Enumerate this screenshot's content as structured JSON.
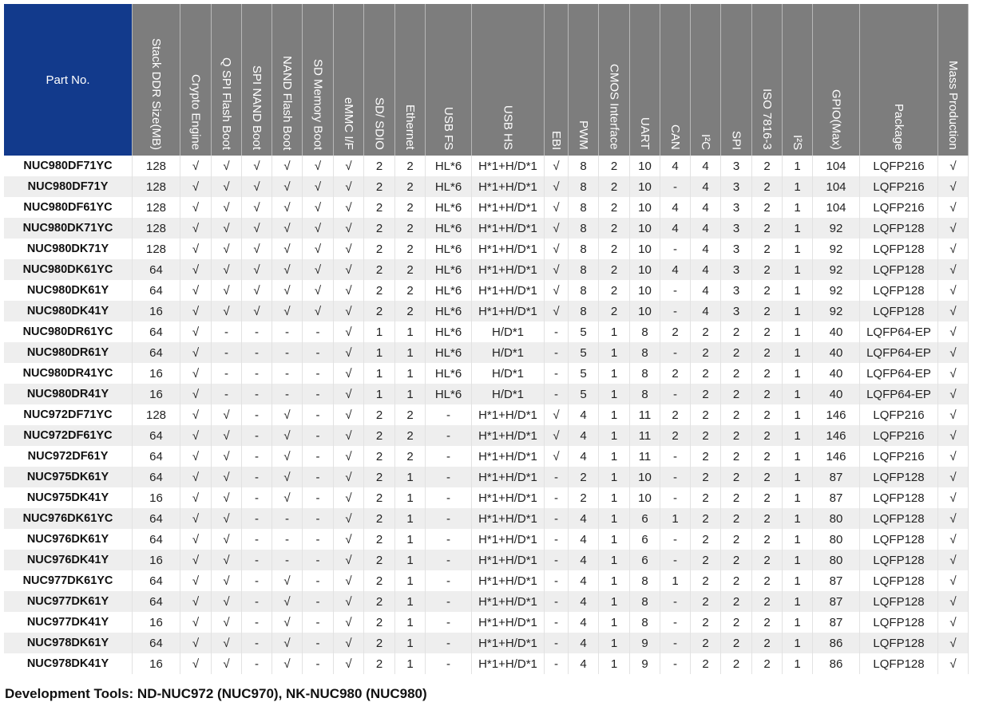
{
  "table": {
    "headers": [
      "Part No.",
      "Stack DDR Size(MB)",
      "Crypto Engine",
      "Q SPI Flash Boot",
      "SPI NAND Boot",
      "NAND Flash Boot",
      "SD Memory Boot",
      "eMMC I/F",
      "SD/ SDIO",
      "Ethernet",
      "USB FS",
      "USB HS",
      "EBI",
      "PWM",
      "CMOS Interface",
      "UART",
      "CAN",
      "I²C",
      "SPI",
      "ISO 7816-3",
      "I²S",
      "GPIO(Max)",
      "Package",
      "Mass Production"
    ],
    "rows": [
      [
        "NUC980DF71YC",
        "128",
        "√",
        "√",
        "√",
        "√",
        "√",
        "√",
        "2",
        "2",
        "HL*6",
        "H*1+H/D*1",
        "√",
        "8",
        "2",
        "10",
        "4",
        "4",
        "3",
        "2",
        "1",
        "104",
        "LQFP216",
        "√"
      ],
      [
        "NUC980DF71Y",
        "128",
        "√",
        "√",
        "√",
        "√",
        "√",
        "√",
        "2",
        "2",
        "HL*6",
        "H*1+H/D*1",
        "√",
        "8",
        "2",
        "10",
        "-",
        "4",
        "3",
        "2",
        "1",
        "104",
        "LQFP216",
        "√"
      ],
      [
        "NUC980DF61YC",
        "128",
        "√",
        "√",
        "√",
        "√",
        "√",
        "√",
        "2",
        "2",
        "HL*6",
        "H*1+H/D*1",
        "√",
        "8",
        "2",
        "10",
        "4",
        "4",
        "3",
        "2",
        "1",
        "104",
        "LQFP216",
        "√"
      ],
      [
        "NUC980DK71YC",
        "128",
        "√",
        "√",
        "√",
        "√",
        "√",
        "√",
        "2",
        "2",
        "HL*6",
        "H*1+H/D*1",
        "√",
        "8",
        "2",
        "10",
        "4",
        "4",
        "3",
        "2",
        "1",
        "92",
        "LQFP128",
        "√"
      ],
      [
        "NUC980DK71Y",
        "128",
        "√",
        "√",
        "√",
        "√",
        "√",
        "√",
        "2",
        "2",
        "HL*6",
        "H*1+H/D*1",
        "√",
        "8",
        "2",
        "10",
        "-",
        "4",
        "3",
        "2",
        "1",
        "92",
        "LQFP128",
        "√"
      ],
      [
        "NUC980DK61YC",
        "64",
        "√",
        "√",
        "√",
        "√",
        "√",
        "√",
        "2",
        "2",
        "HL*6",
        "H*1+H/D*1",
        "√",
        "8",
        "2",
        "10",
        "4",
        "4",
        "3",
        "2",
        "1",
        "92",
        "LQFP128",
        "√"
      ],
      [
        "NUC980DK61Y",
        "64",
        "√",
        "√",
        "√",
        "√",
        "√",
        "√",
        "2",
        "2",
        "HL*6",
        "H*1+H/D*1",
        "√",
        "8",
        "2",
        "10",
        "-",
        "4",
        "3",
        "2",
        "1",
        "92",
        "LQFP128",
        "√"
      ],
      [
        "NUC980DK41Y",
        "16",
        "√",
        "√",
        "√",
        "√",
        "√",
        "√",
        "2",
        "2",
        "HL*6",
        "H*1+H/D*1",
        "√",
        "8",
        "2",
        "10",
        "-",
        "4",
        "3",
        "2",
        "1",
        "92",
        "LQFP128",
        "√"
      ],
      [
        "NUC980DR61YC",
        "64",
        "√",
        "-",
        "-",
        "-",
        "-",
        "√",
        "1",
        "1",
        "HL*6",
        "H/D*1",
        "-",
        "5",
        "1",
        "8",
        "2",
        "2",
        "2",
        "2",
        "1",
        "40",
        "LQFP64-EP",
        "√"
      ],
      [
        "NUC980DR61Y",
        "64",
        "√",
        "-",
        "-",
        "-",
        "-",
        "√",
        "1",
        "1",
        "HL*6",
        "H/D*1",
        "-",
        "5",
        "1",
        "8",
        "-",
        "2",
        "2",
        "2",
        "1",
        "40",
        "LQFP64-EP",
        "√"
      ],
      [
        "NUC980DR41YC",
        "16",
        "√",
        "-",
        "-",
        "-",
        "-",
        "√",
        "1",
        "1",
        "HL*6",
        "H/D*1",
        "-",
        "5",
        "1",
        "8",
        "2",
        "2",
        "2",
        "2",
        "1",
        "40",
        "LQFP64-EP",
        "√"
      ],
      [
        "NUC980DR41Y",
        "16",
        "√",
        "-",
        "-",
        "-",
        "-",
        "√",
        "1",
        "1",
        "HL*6",
        "H/D*1",
        "-",
        "5",
        "1",
        "8",
        "-",
        "2",
        "2",
        "2",
        "1",
        "40",
        "LQFP64-EP",
        "√"
      ],
      [
        "NUC972DF71YC",
        "128",
        "√",
        "√",
        "-",
        "√",
        "-",
        "√",
        "2",
        "2",
        "-",
        "H*1+H/D*1",
        "√",
        "4",
        "1",
        "11",
        "2",
        "2",
        "2",
        "2",
        "1",
        "146",
        "LQFP216",
        "√"
      ],
      [
        "NUC972DF61YC",
        "64",
        "√",
        "√",
        "-",
        "√",
        "-",
        "√",
        "2",
        "2",
        "-",
        "H*1+H/D*1",
        "√",
        "4",
        "1",
        "11",
        "2",
        "2",
        "2",
        "2",
        "1",
        "146",
        "LQFP216",
        "√"
      ],
      [
        "NUC972DF61Y",
        "64",
        "√",
        "√",
        "-",
        "√",
        "-",
        "√",
        "2",
        "2",
        "-",
        "H*1+H/D*1",
        "√",
        "4",
        "1",
        "11",
        "-",
        "2",
        "2",
        "2",
        "1",
        "146",
        "LQFP216",
        "√"
      ],
      [
        "NUC975DK61Y",
        "64",
        "√",
        "√",
        "-",
        "√",
        "-",
        "√",
        "2",
        "1",
        "-",
        "H*1+H/D*1",
        "-",
        "2",
        "1",
        "10",
        "-",
        "2",
        "2",
        "2",
        "1",
        "87",
        "LQFP128",
        "√"
      ],
      [
        "NUC975DK41Y",
        "16",
        "√",
        "√",
        "-",
        "√",
        "-",
        "√",
        "2",
        "1",
        "-",
        "H*1+H/D*1",
        "-",
        "2",
        "1",
        "10",
        "-",
        "2",
        "2",
        "2",
        "1",
        "87",
        "LQFP128",
        "√"
      ],
      [
        "NUC976DK61YC",
        "64",
        "√",
        "√",
        "-",
        "-",
        "-",
        "√",
        "2",
        "1",
        "-",
        "H*1+H/D*1",
        "-",
        "4",
        "1",
        "6",
        "1",
        "2",
        "2",
        "2",
        "1",
        "80",
        "LQFP128",
        "√"
      ],
      [
        "NUC976DK61Y",
        "64",
        "√",
        "√",
        "-",
        "-",
        "-",
        "√",
        "2",
        "1",
        "-",
        "H*1+H/D*1",
        "-",
        "4",
        "1",
        "6",
        "-",
        "2",
        "2",
        "2",
        "1",
        "80",
        "LQFP128",
        "√"
      ],
      [
        "NUC976DK41Y",
        "16",
        "√",
        "√",
        "-",
        "-",
        "-",
        "√",
        "2",
        "1",
        "-",
        "H*1+H/D*1",
        "-",
        "4",
        "1",
        "6",
        "-",
        "2",
        "2",
        "2",
        "1",
        "80",
        "LQFP128",
        "√"
      ],
      [
        "NUC977DK61YC",
        "64",
        "√",
        "√",
        "-",
        "√",
        "-",
        "√",
        "2",
        "1",
        "-",
        "H*1+H/D*1",
        "-",
        "4",
        "1",
        "8",
        "1",
        "2",
        "2",
        "2",
        "1",
        "87",
        "LQFP128",
        "√"
      ],
      [
        "NUC977DK61Y",
        "64",
        "√",
        "√",
        "-",
        "√",
        "-",
        "√",
        "2",
        "1",
        "-",
        "H*1+H/D*1",
        "-",
        "4",
        "1",
        "8",
        "-",
        "2",
        "2",
        "2",
        "1",
        "87",
        "LQFP128",
        "√"
      ],
      [
        "NUC977DK41Y",
        "16",
        "√",
        "√",
        "-",
        "√",
        "-",
        "√",
        "2",
        "1",
        "-",
        "H*1+H/D*1",
        "-",
        "4",
        "1",
        "8",
        "-",
        "2",
        "2",
        "2",
        "1",
        "87",
        "LQFP128",
        "√"
      ],
      [
        "NUC978DK61Y",
        "64",
        "√",
        "√",
        "-",
        "√",
        "-",
        "√",
        "2",
        "1",
        "-",
        "H*1+H/D*1",
        "-",
        "4",
        "1",
        "9",
        "-",
        "2",
        "2",
        "2",
        "1",
        "86",
        "LQFP128",
        "√"
      ],
      [
        "NUC978DK41Y",
        "16",
        "√",
        "√",
        "-",
        "√",
        "-",
        "√",
        "2",
        "1",
        "-",
        "H*1+H/D*1",
        "-",
        "4",
        "1",
        "9",
        "-",
        "2",
        "2",
        "2",
        "1",
        "86",
        "LQFP128",
        "√"
      ]
    ]
  },
  "footer": {
    "note": "Development Tools: ND-NUC972 (NUC970), NK-NUC980 (NUC980)"
  },
  "colors": {
    "header_bg": "#7d7d7d",
    "part_header_bg": "#123a8c",
    "row_alt_bg": "#eeeeee"
  }
}
